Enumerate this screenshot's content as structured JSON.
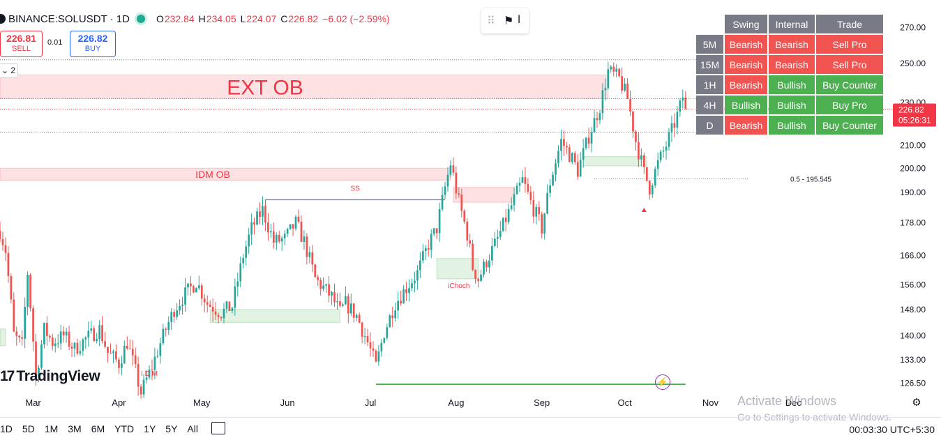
{
  "header": {
    "symbol": "BINANCE:SOLUSDT · 1D",
    "o_label": "O",
    "o_value": "232.84",
    "h_label": "H",
    "h_value": "234.05",
    "l_label": "L",
    "l_value": "224.07",
    "c_label": "C",
    "c_value": "226.82",
    "change": "−6.02 (−2.59%)"
  },
  "trade": {
    "sell_price": "226.81",
    "sell_label": "SELL",
    "spread": "0.01",
    "buy_price": "226.82",
    "buy_label": "BUY"
  },
  "collapse_label": "2",
  "table": {
    "headers": [
      "Swing",
      "Internal",
      "Trade"
    ],
    "rows": [
      {
        "tf": "5M",
        "swing": "Bearish",
        "internal": "Bearish",
        "trade": "Sell Pro"
      },
      {
        "tf": "15M",
        "swing": "Bearish",
        "internal": "Bearish",
        "trade": "Sell Pro"
      },
      {
        "tf": "1H",
        "swing": "Bearish",
        "internal": "Bullish",
        "trade": "Buy Counter"
      },
      {
        "tf": "4H",
        "swing": "Bullish",
        "internal": "Bullish",
        "trade": "Buy Pro"
      },
      {
        "tf": "D",
        "swing": "Bearish",
        "internal": "Bullish",
        "trade": "Buy Counter"
      }
    ]
  },
  "colors": {
    "up": "#26a69a",
    "down": "#ef5350",
    "bearish_cell": "#f05350",
    "bullish_cell": "#4caf50",
    "header_cell": "#787b86"
  },
  "chart_data": {
    "type": "candlestick",
    "symbol": "SOLUSDT",
    "timeframe": "1D",
    "y_scale": "log",
    "y_range": [
      124,
      282
    ],
    "y_ticks": [
      270.0,
      250.0,
      230.0,
      210.0,
      200.0,
      190.0,
      178.0,
      166.0,
      156.0,
      148.0,
      140.0,
      133.0,
      126.5
    ],
    "x_ticks": [
      "Mar",
      "Apr",
      "May",
      "Jun",
      "Jul",
      "Aug",
      "Sep",
      "Oct",
      "Nov",
      "Dec"
    ],
    "x_tick_dates": [
      "2024-03-01",
      "2024-04-01",
      "2024-05-01",
      "2024-06-01",
      "2024-07-01",
      "2024-08-01",
      "2024-09-01",
      "2024-10-01",
      "2024-11-01",
      "2024-12-01"
    ],
    "x_range": [
      "2024-02-18",
      "2025-01-06"
    ],
    "last_price": "226.82",
    "countdown": "05:26:31",
    "anchors": [
      [
        "2024-02-18",
        175
      ],
      [
        "2024-02-20",
        168
      ],
      [
        "2024-02-23",
        140
      ],
      [
        "2024-02-26",
        137
      ],
      [
        "2024-02-28",
        160
      ],
      [
        "2024-03-02",
        128
      ],
      [
        "2024-03-05",
        142
      ],
      [
        "2024-03-08",
        138
      ],
      [
        "2024-03-12",
        140
      ],
      [
        "2024-03-16",
        136
      ],
      [
        "2024-03-20",
        139
      ],
      [
        "2024-03-25",
        142
      ],
      [
        "2024-03-28",
        135
      ],
      [
        "2024-04-01",
        132
      ],
      [
        "2024-04-04",
        138
      ],
      [
        "2024-04-09",
        124
      ],
      [
        "2024-04-13",
        131
      ],
      [
        "2024-04-17",
        140
      ],
      [
        "2024-04-21",
        148
      ],
      [
        "2024-04-25",
        153
      ],
      [
        "2024-04-29",
        157
      ],
      [
        "2024-05-03",
        150
      ],
      [
        "2024-05-08",
        147
      ],
      [
        "2024-05-12",
        149
      ],
      [
        "2024-05-16",
        166
      ],
      [
        "2024-05-19",
        176
      ],
      [
        "2024-05-23",
        183
      ],
      [
        "2024-05-27",
        171
      ],
      [
        "2024-05-31",
        172
      ],
      [
        "2024-06-04",
        178
      ],
      [
        "2024-06-07",
        171
      ],
      [
        "2024-06-11",
        158
      ],
      [
        "2024-06-14",
        155
      ],
      [
        "2024-06-17",
        152
      ],
      [
        "2024-06-20",
        147
      ],
      [
        "2024-06-22",
        150
      ],
      [
        "2024-06-26",
        146
      ],
      [
        "2024-06-30",
        138
      ],
      [
        "2024-07-03",
        131
      ],
      [
        "2024-07-06",
        141
      ],
      [
        "2024-07-10",
        150
      ],
      [
        "2024-07-14",
        155
      ],
      [
        "2024-07-18",
        160
      ],
      [
        "2024-07-22",
        170
      ],
      [
        "2024-07-25",
        176
      ],
      [
        "2024-07-28",
        192
      ],
      [
        "2024-07-30",
        202
      ],
      [
        "2024-08-02",
        186
      ],
      [
        "2024-08-05",
        174
      ],
      [
        "2024-08-07",
        162
      ],
      [
        "2024-08-09",
        158
      ],
      [
        "2024-08-12",
        164
      ],
      [
        "2024-08-16",
        172
      ],
      [
        "2024-08-20",
        182
      ],
      [
        "2024-08-25",
        195
      ],
      [
        "2024-08-28",
        186
      ],
      [
        "2024-09-01",
        176
      ],
      [
        "2024-09-04",
        194
      ],
      [
        "2024-09-08",
        212
      ],
      [
        "2024-09-12",
        204
      ],
      [
        "2024-09-14",
        199
      ],
      [
        "2024-09-18",
        214
      ],
      [
        "2024-09-22",
        228
      ],
      [
        "2024-09-25",
        246
      ],
      [
        "2024-09-29",
        242
      ],
      [
        "2024-10-02",
        232
      ],
      [
        "2024-10-05",
        212
      ],
      [
        "2024-10-08",
        198
      ],
      [
        "2024-10-10",
        192
      ],
      [
        "2024-10-13",
        202
      ],
      [
        "2024-10-16",
        210
      ],
      [
        "2024-10-19",
        220
      ],
      [
        "2024-10-21",
        228
      ],
      [
        "2024-10-22",
        233
      ],
      [
        "2024-10-23",
        226.82
      ]
    ],
    "zones": [
      {
        "label": "EXT OB",
        "from": "2024-02-18",
        "to": "2024-09-25",
        "low": 232,
        "high": 244,
        "kind": "supply"
      },
      {
        "label": "IDM OB",
        "from": "2024-02-18",
        "to": "2024-07-30",
        "low": 195,
        "high": 200,
        "kind": "supply"
      },
      {
        "label": "",
        "from": "2024-07-31",
        "to": "2024-08-22",
        "low": 186,
        "high": 192,
        "kind": "supply"
      },
      {
        "label": "",
        "from": "2024-09-16",
        "to": "2024-10-09",
        "low": 201,
        "high": 205,
        "kind": "demand"
      },
      {
        "label": "",
        "from": "2024-07-25",
        "to": "2024-08-09",
        "low": 158,
        "high": 165,
        "kind": "demand"
      },
      {
        "label": "",
        "from": "2024-05-04",
        "to": "2024-06-20",
        "low": 144,
        "high": 148,
        "kind": "demand"
      },
      {
        "label": "",
        "from": "2024-02-18",
        "to": "2024-02-20",
        "low": 137,
        "high": 142,
        "kind": "demand"
      }
    ],
    "lines": [
      {
        "label": "",
        "from": "2024-02-18",
        "to": "2024-10-30",
        "value": 252,
        "style": "dotted"
      },
      {
        "label": "",
        "from": "2024-02-18",
        "to": "2024-10-30",
        "value": 232,
        "style": "dotted"
      },
      {
        "label": "",
        "from": "2024-02-18",
        "to": "2024-10-30",
        "value": 216,
        "style": "dotted"
      },
      {
        "label": "0.5 - 195.545",
        "from": "2024-09-20",
        "to": "2024-11-15",
        "value": 195.545,
        "style": "dotted"
      },
      {
        "label": "SS",
        "from": "2024-05-24",
        "to": "2024-07-28",
        "value": 187,
        "style": "solid"
      },
      {
        "label": "",
        "from": "2024-07-03",
        "to": "2024-10-23",
        "value": 126.2,
        "style": "solid-green"
      }
    ],
    "labels": [
      {
        "text": "iChoch",
        "date": "2024-08-02",
        "value": 155
      },
      {
        "text": "I D M",
        "date": "2024-04-12",
        "value": 128.5
      }
    ],
    "markers": [
      {
        "shape": "triangle-up",
        "date": "2024-10-08",
        "value": 183
      }
    ]
  },
  "periods": [
    "1D",
    "5D",
    "1M",
    "3M",
    "6M",
    "YTD",
    "1Y",
    "5Y",
    "All"
  ],
  "clock": "00:03:30 UTC+5:30",
  "logo_text": "TradingView",
  "watermark": {
    "line1": "Activate Windows",
    "line2": "Go to Settings to activate Windows."
  }
}
